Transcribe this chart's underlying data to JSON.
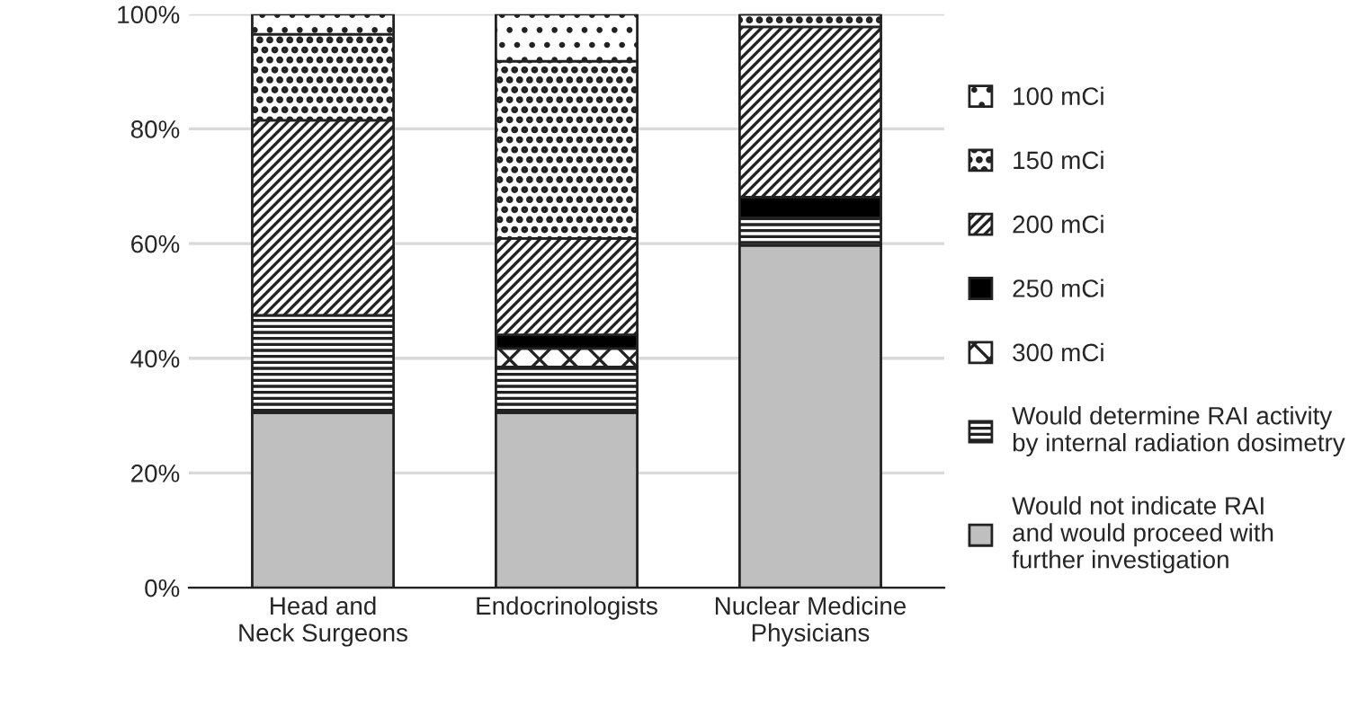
{
  "chart_data": {
    "type": "bar",
    "stacked": true,
    "categories": [
      "Head and\nNeck Surgeons",
      "Endocrinologists",
      "Nuclear Medicine\nPhysicians"
    ],
    "series": [
      {
        "name": "Would not indicate RAI\nand would proceed with\nfurther investigation",
        "color": "#bfbfbf",
        "values": [
          30.5,
          30.5,
          59.7
        ]
      },
      {
        "name": "Would determine RAI activity\nby internal radiation dosimetry",
        "color": "#222222",
        "values": [
          17,
          8,
          4.8
        ]
      },
      {
        "name": "300 mCi",
        "color": "#222222",
        "values": [
          0,
          3.2,
          0
        ]
      },
      {
        "name": "250 mCi",
        "color": "#000000",
        "values": [
          0,
          2.4,
          3.6
        ]
      },
      {
        "name": "200 mCi",
        "color": "#222222",
        "values": [
          34,
          16.8,
          29.7
        ]
      },
      {
        "name": "150 mCi",
        "color": "#222222",
        "values": [
          15,
          30.9,
          2.2
        ]
      },
      {
        "name": "100 mCi",
        "color": "#222222",
        "values": [
          3.5,
          8.2,
          0
        ]
      }
    ],
    "ylim": [
      0,
      100
    ],
    "yticks": [
      {
        "value": 0,
        "label": "0%"
      },
      {
        "value": 20,
        "label": "20%"
      },
      {
        "value": 40,
        "label": "40%"
      },
      {
        "value": 60,
        "label": "60%"
      },
      {
        "value": 80,
        "label": "80%"
      },
      {
        "value": 100,
        "label": "100%"
      }
    ],
    "grid": "y",
    "legend": "right"
  }
}
